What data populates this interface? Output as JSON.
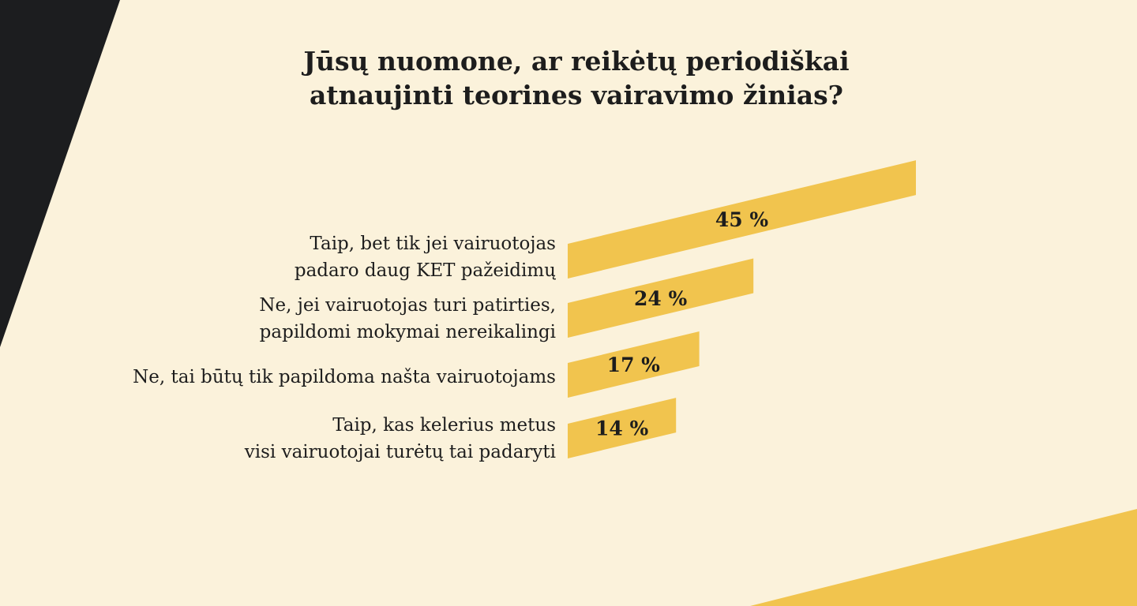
{
  "colors": {
    "background": "#fbf2db",
    "bar": "#f1c44e",
    "dark": "#1c1d1f"
  },
  "title": [
    "Jūsų nuomone, ar reikėtų periodiškai",
    "atnaujinti teorines vairavimo žinias?"
  ],
  "chart_data": {
    "type": "bar",
    "orientation": "horizontal",
    "title": "Jūsų nuomone, ar reikėtų periodiškai atnaujinti teorines vairavimo žinias?",
    "categories": [
      [
        "Taip, bet tik jei vairuotojas",
        "padaro daug KET pažeidimų"
      ],
      [
        "Ne, jei vairuotojas turi patirties,",
        "papildomi mokymai nereikalingi"
      ],
      [
        "Ne, tai būtų tik papildoma našta vairuotojams"
      ],
      [
        "Taip, kas kelerius metus",
        "visi vairuotojai turėtų tai padaryti"
      ]
    ],
    "values": [
      45,
      24,
      17,
      14
    ],
    "value_labels": [
      "45 %",
      "24 %",
      "17 %",
      "14 %"
    ],
    "unit": "%",
    "grid": false,
    "legend": "none"
  }
}
